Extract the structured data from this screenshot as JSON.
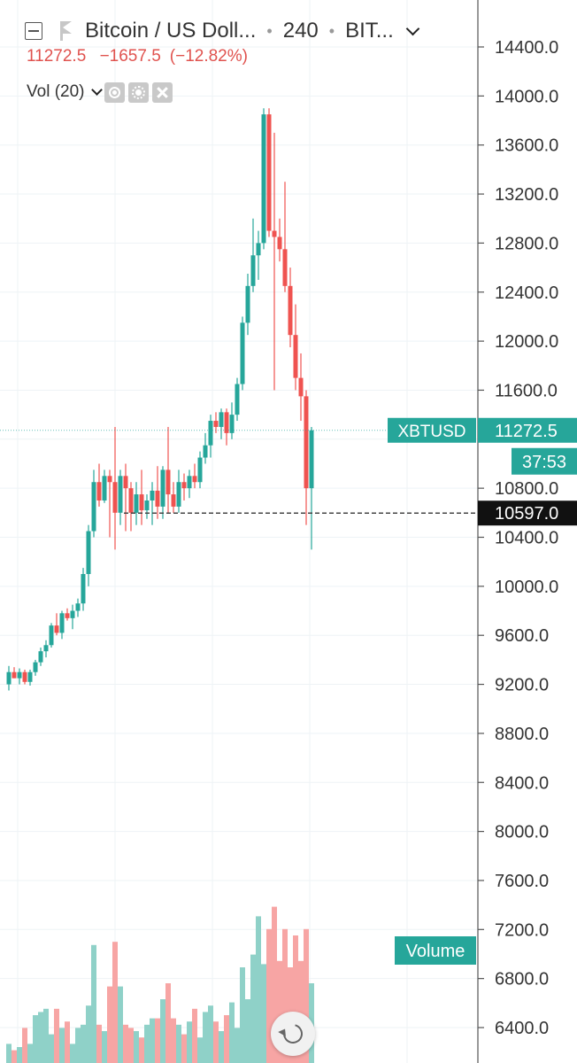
{
  "header": {
    "symbol_title": "Bitcoin / US Doll...",
    "interval": "240",
    "exchange": "BIT...",
    "last_price": "11272.5",
    "change": "−1657.5",
    "change_pct": "(−12.82%)"
  },
  "indicator": {
    "label": "Vol (20)"
  },
  "colors": {
    "up": "#26a69a",
    "down": "#ef5350",
    "up_volume": "#8fd1c8",
    "down_volume": "#f7a5a4",
    "price_line": "#26a69a",
    "grid": "#eef3f6"
  },
  "chart_data": {
    "type": "candlestick",
    "symbol": "XBTUSD",
    "price_axis": {
      "min": 6400,
      "max": 14400,
      "step": 400,
      "ticks": [
        "14400.0",
        "14000.0",
        "13600.0",
        "13200.0",
        "12800.0",
        "12400.0",
        "12000.0",
        "11600.0",
        "10800.0",
        "10400.0",
        "10000.0",
        "9600.0",
        "9200.0",
        "8800.0",
        "8400.0",
        "8000.0",
        "7600.0",
        "7200.0",
        "6800.0",
        "6400.0"
      ]
    },
    "last_price": 11272.5,
    "last_price_label": "11272.5",
    "symbol_tag": "XBTUSD",
    "countdown": "37:53",
    "crosshair_price": 10597.0,
    "crosshair_label": "10597.0",
    "volume_tag": "Volume",
    "candles": [
      [
        9200,
        9350,
        9150,
        9300
      ],
      [
        9300,
        9340,
        9250,
        9250
      ],
      [
        9250,
        9330,
        9200,
        9300
      ],
      [
        9300,
        9320,
        9200,
        9220
      ],
      [
        9220,
        9320,
        9190,
        9300
      ],
      [
        9300,
        9400,
        9270,
        9380
      ],
      [
        9380,
        9500,
        9350,
        9470
      ],
      [
        9470,
        9560,
        9420,
        9520
      ],
      [
        9520,
        9700,
        9500,
        9680
      ],
      [
        9680,
        9780,
        9600,
        9620
      ],
      [
        9620,
        9800,
        9570,
        9780
      ],
      [
        9780,
        9820,
        9720,
        9740
      ],
      [
        9740,
        9850,
        9650,
        9800
      ],
      [
        9800,
        9900,
        9750,
        9860
      ],
      [
        9860,
        10150,
        9800,
        10100
      ],
      [
        10100,
        10500,
        10000,
        10450
      ],
      [
        10450,
        10950,
        10400,
        10850
      ],
      [
        10850,
        11000,
        10650,
        10700
      ],
      [
        10700,
        10950,
        10680,
        10900
      ],
      [
        10900,
        10950,
        10400,
        10850
      ],
      [
        10850,
        11300,
        10300,
        10600
      ],
      [
        10600,
        10950,
        10500,
        10900
      ],
      [
        10900,
        11000,
        10450,
        10800
      ],
      [
        10800,
        10850,
        10450,
        10600
      ],
      [
        10600,
        10850,
        10500,
        10750
      ],
      [
        10750,
        10950,
        10500,
        10620
      ],
      [
        10620,
        10750,
        10550,
        10700
      ],
      [
        10700,
        10850,
        10500,
        10780
      ],
      [
        10780,
        10980,
        10550,
        10650
      ],
      [
        10650,
        10980,
        10550,
        10950
      ],
      [
        10950,
        11300,
        10600,
        10750
      ],
      [
        10750,
        10850,
        10600,
        10650
      ],
      [
        10650,
        10950,
        10600,
        10850
      ],
      [
        10850,
        10920,
        10700,
        10800
      ],
      [
        10800,
        10950,
        10720,
        10900
      ],
      [
        10900,
        11000,
        10800,
        10850
      ],
      [
        10850,
        11100,
        10800,
        11050
      ],
      [
        11050,
        11250,
        11000,
        11150
      ],
      [
        11150,
        11400,
        11050,
        11350
      ],
      [
        11350,
        11420,
        11250,
        11300
      ],
      [
        11300,
        11450,
        11200,
        11420
      ],
      [
        11420,
        11450,
        11150,
        11250
      ],
      [
        11250,
        11500,
        11200,
        11400
      ],
      [
        11400,
        11700,
        11350,
        11650
      ],
      [
        11650,
        12200,
        11600,
        12150
      ],
      [
        12150,
        12550,
        12050,
        12450
      ],
      [
        12450,
        13000,
        12400,
        12700
      ],
      [
        12700,
        12900,
        12500,
        12800
      ],
      [
        12800,
        13900,
        12750,
        13850
      ],
      [
        13850,
        13900,
        12850,
        12900
      ],
      [
        12900,
        13700,
        11600,
        12850
      ],
      [
        12850,
        13000,
        12650,
        12750
      ],
      [
        12750,
        13300,
        12400,
        12450
      ],
      [
        12450,
        12600,
        11950,
        12050
      ],
      [
        12050,
        12300,
        11600,
        11700
      ],
      [
        11700,
        11900,
        11350,
        11550
      ],
      [
        11550,
        11600,
        10500,
        10800
      ],
      [
        10800,
        11300,
        10300,
        11272.5
      ]
    ],
    "volume_axis": {
      "min": 0,
      "max": 100
    },
    "volume": [
      6,
      4,
      5,
      11,
      6,
      15,
      16,
      17,
      9,
      17,
      11,
      13,
      6,
      11,
      12,
      18,
      37,
      12,
      10,
      24,
      38,
      24,
      12,
      11,
      10,
      8,
      12,
      14,
      14,
      20,
      25,
      14,
      12,
      9,
      13,
      17,
      8,
      16,
      18,
      13,
      10,
      15,
      19,
      11,
      30,
      20,
      34,
      46,
      31,
      42,
      49,
      32,
      42,
      30,
      40,
      32,
      42,
      25
    ]
  }
}
